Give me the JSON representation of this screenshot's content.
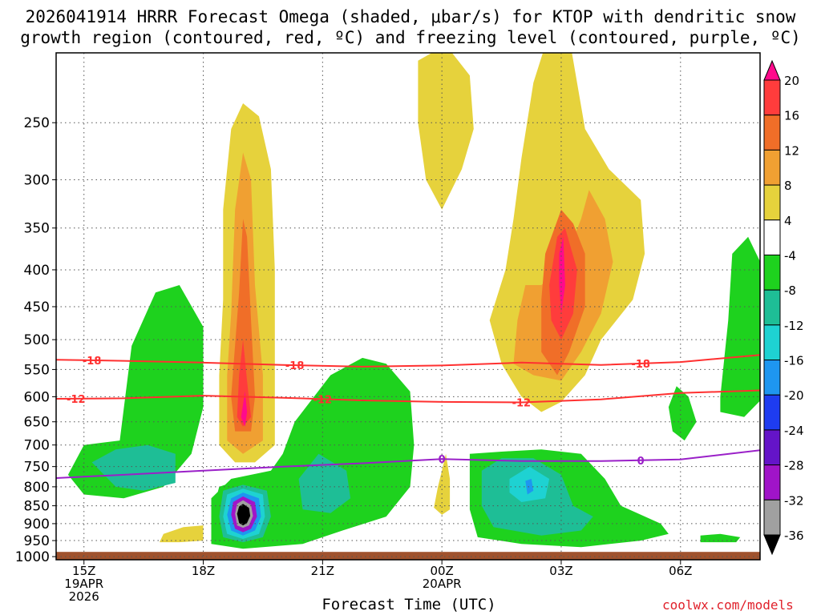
{
  "title_line1": "2026041914 HRRR Forecast Omega (shaded, μbar/s) for KTOP with dendritic snow",
  "title_line2": "growth region (contoured, red, ºC) and freezing level (contoured, purple, ºC)",
  "credit": "coolwx.com/models",
  "chart_data": {
    "type": "heatmap",
    "title": "2026041914 HRRR Forecast Omega (shaded, μbar/s) for KTOP with dendritic snow growth region (contoured, red, ºC) and freezing level (contoured, purple, ºC)",
    "xlabel": "Forecast Time (UTC)",
    "ylabel": "",
    "x_range_hours": [
      14.3,
      32.0
    ],
    "y_range_hPa": [
      200,
      1010
    ],
    "y_scale": "log-pressure",
    "y_ticks": [
      250,
      300,
      350,
      400,
      450,
      500,
      550,
      600,
      650,
      700,
      750,
      800,
      850,
      900,
      950,
      1000
    ],
    "x_ticks": [
      {
        "hour": 15,
        "label": "15Z",
        "sub1": "19APR",
        "sub2": "2026"
      },
      {
        "hour": 18,
        "label": "18Z",
        "sub1": "",
        "sub2": ""
      },
      {
        "hour": 21,
        "label": "21Z",
        "sub1": "",
        "sub2": ""
      },
      {
        "hour": 24,
        "label": "00Z",
        "sub1": "20APR",
        "sub2": ""
      },
      {
        "hour": 27,
        "label": "03Z",
        "sub1": "",
        "sub2": ""
      },
      {
        "hour": 30,
        "label": "06Z",
        "sub1": "",
        "sub2": ""
      }
    ],
    "grid": true,
    "colorbar": {
      "levels": [
        20,
        16,
        12,
        8,
        4,
        -4,
        -8,
        -12,
        -16,
        -20,
        -24,
        -28,
        -32,
        -36
      ],
      "colors": [
        "#ff0a8c",
        "#ff3c3c",
        "#f06e28",
        "#f0a032",
        "#e6d23c",
        "#ffffff",
        "#1ed21e",
        "#1ebe96",
        "#1ed2d2",
        "#1e96f0",
        "#1e3cf0",
        "#6414c8",
        "#a014c8",
        "#a0a0a0",
        "#000000"
      ]
    },
    "contours": [
      {
        "name": "dgz -18C",
        "color": "#ff3030",
        "value": -18,
        "label": "-18",
        "points": [
          [
            14.3,
            533
          ],
          [
            16,
            535
          ],
          [
            18,
            538
          ],
          [
            20,
            542
          ],
          [
            22,
            545
          ],
          [
            24,
            543
          ],
          [
            26,
            538
          ],
          [
            28,
            542
          ],
          [
            30,
            537
          ],
          [
            32,
            525
          ]
        ],
        "label_hours": [
          15.2,
          20.3,
          29.0
        ]
      },
      {
        "name": "dgz -12C",
        "color": "#ff3030",
        "value": -12,
        "label": "-12",
        "points": [
          [
            14.3,
            604
          ],
          [
            16,
            603
          ],
          [
            18,
            598
          ],
          [
            20,
            602
          ],
          [
            22,
            607
          ],
          [
            24,
            610
          ],
          [
            26,
            611
          ],
          [
            28,
            605
          ],
          [
            30,
            593
          ],
          [
            32,
            588
          ]
        ],
        "label_hours": [
          14.8,
          21.0,
          26.0
        ]
      },
      {
        "name": "freezing level",
        "color": "#9a20c8",
        "value": 0,
        "label": "0",
        "points": [
          [
            14.3,
            778
          ],
          [
            16,
            770
          ],
          [
            18,
            760
          ],
          [
            20,
            750
          ],
          [
            22,
            742
          ],
          [
            24,
            732
          ],
          [
            26,
            737
          ],
          [
            28,
            737
          ],
          [
            30,
            733
          ],
          [
            32,
            712
          ]
        ],
        "label_hours": [
          24.0,
          29.0
        ]
      }
    ],
    "omega_features": [
      {
        "hour": 19.0,
        "pressure": 880,
        "value": -36,
        "note": "strongest ascent core"
      },
      {
        "hour": 19.0,
        "pressure": 620,
        "value": 18,
        "note": "positive column max"
      },
      {
        "hour": 27.0,
        "pressure": 420,
        "value": 22,
        "note": "upper positive max"
      },
      {
        "hour": 26.0,
        "pressure": 800,
        "value": -18,
        "note": "low-level ascent"
      }
    ],
    "terrain_pressure_hPa": 985
  }
}
